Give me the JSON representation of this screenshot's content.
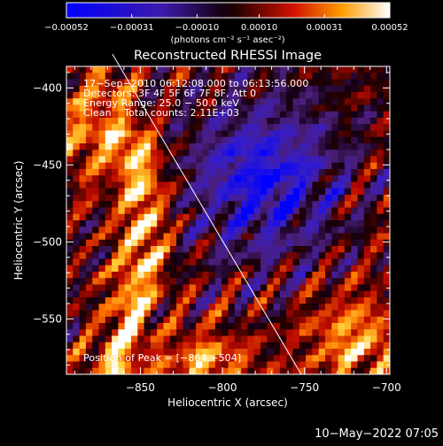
{
  "chart_data": {
    "type": "heatmap",
    "title": "Reconstructed RHESSI Image",
    "xlabel": "Heliocentric X (arcsec)",
    "ylabel": "Heliocentric Y (arcsec)",
    "xlim": [
      -895,
      -698
    ],
    "ylim": [
      -586,
      -386
    ],
    "x_ticks": [
      -850,
      -800,
      -750,
      -700
    ],
    "x_tick_labels": [
      "−850",
      "−800",
      "−750",
      "−700"
    ],
    "y_ticks": [
      -400,
      -450,
      -500,
      -550
    ],
    "y_tick_labels": [
      "−400",
      "−450",
      "−500",
      "−550"
    ],
    "colorbar": {
      "range": [
        -0.00052,
        0.00052
      ],
      "ticks": [
        -0.00052,
        -0.00031,
        -0.0001,
        0.0001,
        0.00031,
        0.00052
      ],
      "tick_labels": [
        "−0.00052",
        "−0.00031",
        "−0.00010",
        "0.00010",
        "0.00031",
        "0.00052"
      ],
      "units_label": "(photons cm⁻² s⁻¹ asec⁻²)"
    },
    "annotations": [
      "17−Sep−2010 06:12:08.000 to 06:13:56.000",
      "Detectors: 3F 4F 5F 6F 7F 8F, Att 0",
      "Energy Range: 25.0 − 50.0 keV",
      "Clean    Total counts: 2.11E+03"
    ],
    "peak_label": "Position of Peak = [−864,−504]",
    "limb_line": {
      "x": [
        -867,
        -752
      ],
      "y": [
        -378,
        -586
      ]
    }
  },
  "footer": {
    "date": "10−May−2022 07:05"
  },
  "colors": {
    "background": "#000000",
    "foreground": "#ffffff"
  }
}
